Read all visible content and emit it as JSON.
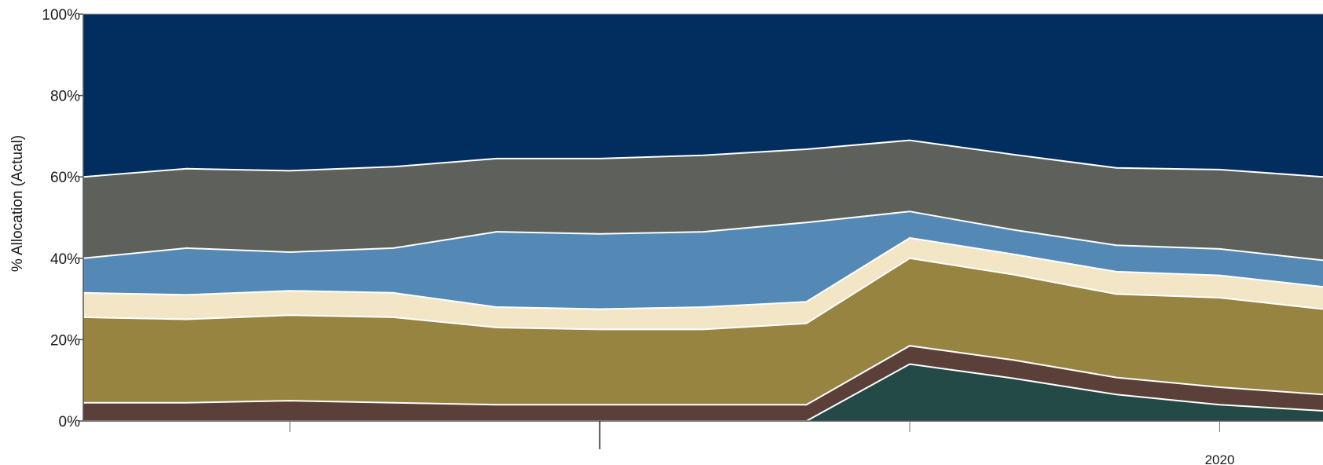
{
  "chart_data": {
    "type": "area",
    "stacked": true,
    "normalized": true,
    "title": "",
    "ylabel": "% Allocation (Actual)",
    "xlabel": "",
    "ylim": [
      0,
      100
    ],
    "y_ticks": [
      0,
      20,
      40,
      60,
      80,
      100
    ],
    "y_tick_labels": [
      "0%",
      "20%",
      "40%",
      "60%",
      "80%",
      "100%"
    ],
    "x": [
      0,
      1,
      2,
      3,
      4,
      5,
      6,
      7,
      8,
      9,
      10,
      11,
      12
    ],
    "x_tick_positions": [
      2,
      5,
      8,
      11
    ],
    "x_tick_major": [
      5
    ],
    "x_labels": [
      {
        "x": 11,
        "text": "2020"
      }
    ],
    "series": [
      {
        "color": "#244a47",
        "values": [
          0.0,
          0.0,
          0.0,
          0.0,
          0.0,
          0.0,
          0.0,
          0.0,
          14.0,
          10.5,
          6.5,
          4.0,
          2.5
        ]
      },
      {
        "color": "#5a4038",
        "values": [
          4.5,
          4.5,
          5.0,
          4.5,
          4.0,
          4.0,
          4.0,
          4.0,
          4.5,
          4.5,
          4.2,
          4.3,
          4.0
        ]
      },
      {
        "color": "#978441",
        "values": [
          21.0,
          20.5,
          21.0,
          21.0,
          19.0,
          18.5,
          18.5,
          20.0,
          21.5,
          21.0,
          20.5,
          22.0,
          21.0
        ]
      },
      {
        "color": "#f2e6c6",
        "values": [
          6.0,
          6.0,
          6.0,
          6.0,
          5.0,
          5.0,
          5.5,
          5.3,
          5.0,
          5.0,
          5.5,
          5.5,
          5.5
        ]
      },
      {
        "color": "#5489b6",
        "values": [
          8.5,
          11.5,
          9.5,
          11.0,
          18.5,
          18.5,
          18.5,
          19.5,
          6.5,
          6.0,
          6.5,
          6.5,
          6.5
        ]
      },
      {
        "color": "#5e605c",
        "values": [
          20.0,
          19.5,
          20.0,
          20.0,
          18.0,
          18.5,
          18.8,
          18.0,
          17.5,
          18.5,
          19.0,
          19.5,
          20.5
        ]
      },
      {
        "color": "#022d5f",
        "values": [
          40.0,
          38.0,
          38.5,
          37.5,
          35.5,
          35.5,
          34.7,
          33.2,
          31.0,
          34.5,
          37.8,
          38.2,
          40.0
        ]
      }
    ]
  }
}
